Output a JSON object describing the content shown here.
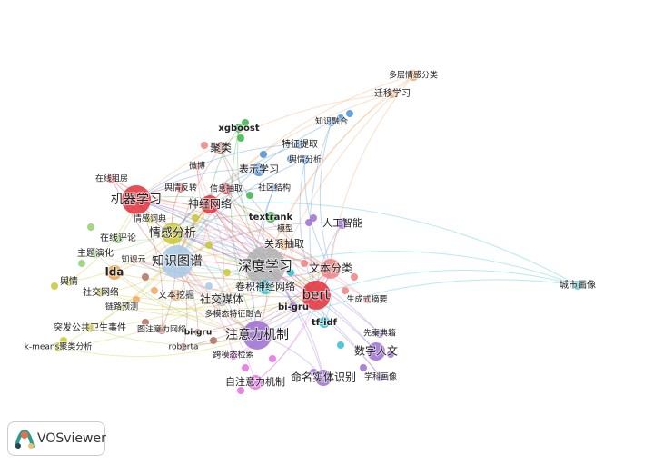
{
  "nodes": [
    {
      "label": "多层情感分类"
    },
    {
      "label": "迁移学习"
    },
    {
      "label": "知识融合"
    },
    {
      "label": "xgboost"
    },
    {
      "label": "特征提取"
    },
    {
      "label": "聚类"
    },
    {
      "label": "微博"
    },
    {
      "label": "表示学习"
    },
    {
      "label": "舆情分析"
    },
    {
      "label": "在线租房"
    },
    {
      "label": "舆情反转"
    },
    {
      "label": "信息抽取"
    },
    {
      "label": "社区结构"
    },
    {
      "label": "机器学习"
    },
    {
      "label": "神经网络"
    },
    {
      "label": "情感词典"
    },
    {
      "label": "textrank"
    },
    {
      "label": "人工智能"
    },
    {
      "label": "情感分析"
    },
    {
      "label": "在线评论"
    },
    {
      "label": "模型"
    },
    {
      "label": "主题演化"
    },
    {
      "label": "关系抽取"
    },
    {
      "label": "知识元"
    },
    {
      "label": "知识图谱"
    },
    {
      "label": "深度学习"
    },
    {
      "label": "文本分类"
    },
    {
      "label": "lda"
    },
    {
      "label": "舆情"
    },
    {
      "label": "社交网络"
    },
    {
      "label": "文本挖掘"
    },
    {
      "label": "卷积神经网络"
    },
    {
      "label": "bert"
    },
    {
      "label": "社交媒体"
    },
    {
      "label": "生成式摘要"
    },
    {
      "label": "链路预测"
    },
    {
      "label": "bi-gru"
    },
    {
      "label": "多模态特征融合"
    },
    {
      "label": "tf-idf"
    },
    {
      "label": "突发公共卫生事件"
    },
    {
      "label": "图注意力网络"
    },
    {
      "label": "bi-gru"
    },
    {
      "label": "注意力机制"
    },
    {
      "label": "先秦典籍"
    },
    {
      "label": "roberta"
    },
    {
      "label": "k-means聚类分析"
    },
    {
      "label": "数字人文"
    },
    {
      "label": "跨模态检索"
    },
    {
      "label": "命名实体识别"
    },
    {
      "label": "学科画像"
    },
    {
      "label": "自注意力机制"
    },
    {
      "label": "城市画像"
    }
  ],
  "logo": {
    "text": "VOSviewer"
  }
}
